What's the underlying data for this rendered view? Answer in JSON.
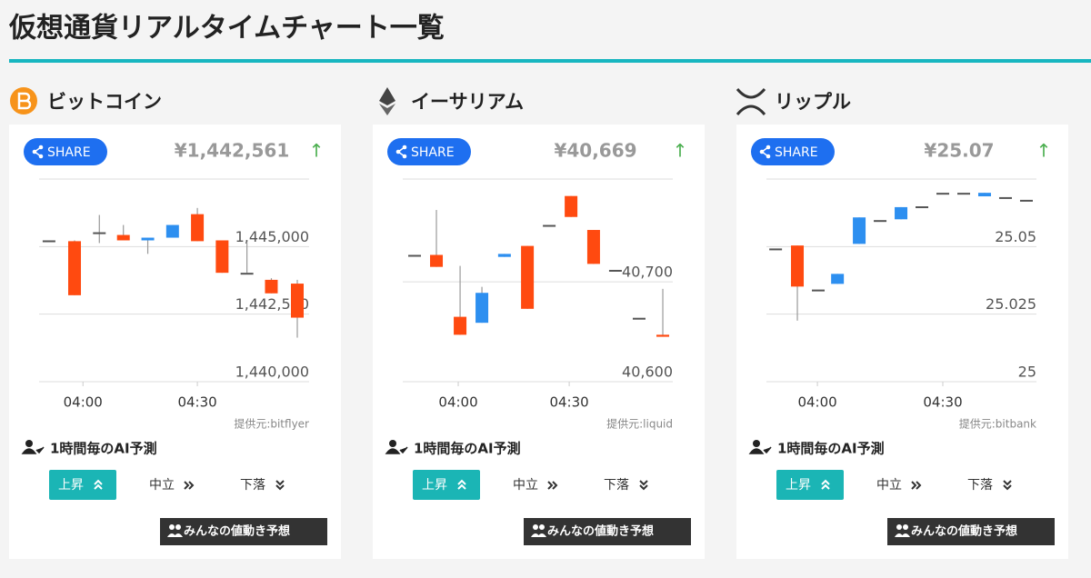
{
  "header": {
    "title": "仮想通貨リアルタイムチャート一覧"
  },
  "cards": [
    {
      "name": "ビットコイン",
      "price": "¥1,442,561",
      "arrow": "↑",
      "share": "SHARE",
      "source": "提供元:bitflyer",
      "ai_label": "1時間毎のAI予測",
      "buttons": [
        "上昇",
        "中立",
        "下落"
      ],
      "vote": "みんなの値動き予想"
    },
    {
      "name": "イーサリアム",
      "price": "¥40,669",
      "arrow": "↑",
      "share": "SHARE",
      "source": "提供元:liquid",
      "ai_label": "1時間毎のAI予測",
      "buttons": [
        "上昇",
        "中立",
        "下落"
      ],
      "vote": "みんなの値動き予想"
    },
    {
      "name": "リップル",
      "price": "¥25.07",
      "arrow": "↑",
      "share": "SHARE",
      "source": "提供元:bitbank",
      "ai_label": "1時間毎のAI予測",
      "buttons": [
        "上昇",
        "中立",
        "下落"
      ],
      "vote": "みんなの値動き予想"
    }
  ],
  "chart_data": [
    {
      "type": "candlestick",
      "x": [
        231.1,
        237.8,
        244.3,
        250.6,
        257,
        263.5,
        270,
        276.5,
        283,
        289.4,
        296.2
      ],
      "open": [
        1445230,
        1445200,
        1445530,
        1445430,
        1445230,
        1445330,
        1446200,
        1445230,
        1444030,
        1443770,
        1443630
      ],
      "high": [
        1445230,
        1445230,
        1446170,
        1445800,
        1445330,
        1445800,
        1446430,
        1445230,
        1445170,
        1443830,
        1443770
      ],
      "low": [
        1445230,
        1443200,
        1445130,
        1445230,
        1444730,
        1445330,
        1445200,
        1444030,
        1444030,
        1443270,
        1441630
      ],
      "close": [
        1445230,
        1443200,
        1445530,
        1445230,
        1445330,
        1445800,
        1445200,
        1444030,
        1444030,
        1443270,
        1442370
      ],
      "xlim": [
        228.5,
        299.3
      ],
      "xticks": [
        {
          "value": 240,
          "label": "04:00"
        },
        {
          "value": 270,
          "label": "04:30"
        }
      ],
      "ylim": [
        1440000,
        1447500
      ],
      "yticks": [
        {
          "value": 1440000,
          "label": "1,440,000"
        },
        {
          "value": 1442500,
          "label": "1,442,500"
        },
        {
          "value": 1445000,
          "label": "1,445,000"
        }
      ],
      "grid": true,
      "up_color": "#2d8ff0",
      "down_color": "#ff4a10",
      "flat_color": "#555555",
      "wick_color": "#999999"
    },
    {
      "type": "candlestick",
      "x": [
        228.2,
        234.1,
        240.5,
        246.4,
        252.5,
        258.7,
        264.6,
        270.5,
        276.6,
        282.5,
        288.9,
        295.3
      ],
      "open": [
        40727,
        40727,
        40665,
        40659,
        40725,
        40736,
        40757,
        40786,
        40752,
        40712,
        40664,
        40647
      ],
      "high": [
        40727,
        40772,
        40716,
        40695,
        40728,
        40736,
        40757,
        40786,
        40752,
        40712,
        40664,
        40693
      ],
      "low": [
        40727,
        40715,
        40647,
        40659,
        40725,
        40673,
        40757,
        40765,
        40718,
        40712,
        40664,
        40645
      ],
      "close": [
        40727,
        40715,
        40647,
        40689,
        40728,
        40673,
        40757,
        40765,
        40718,
        40712,
        40664,
        40645
      ],
      "xlim": [
        225,
        298
      ],
      "xticks": [
        {
          "value": 240,
          "label": "04:00"
        },
        {
          "value": 270,
          "label": "04:30"
        }
      ],
      "ylim": [
        40600,
        40803
      ],
      "yticks": [
        {
          "value": 40600,
          "label": "40,600"
        },
        {
          "value": 40700,
          "label": "40,700"
        }
      ],
      "grid": true,
      "up_color": "#2d8ff0",
      "down_color": "#ff4a10",
      "flat_color": "#555555",
      "wick_color": "#999999"
    },
    {
      "type": "candlestick",
      "x": [
        230,
        235.2,
        240.2,
        244.8,
        250,
        255,
        260,
        265,
        270,
        275,
        280,
        285,
        290
      ],
      "open": [
        25.0493,
        25.0504,
        25.0341,
        25.0362,
        25.051,
        25.0598,
        25.0601,
        25.0649,
        25.0699,
        25.0699,
        25.0686,
        25.0683,
        25.0673
      ],
      "high": [
        25.0493,
        25.0504,
        25.0341,
        25.0399,
        25.0608,
        25.0598,
        25.0646,
        25.0649,
        25.0699,
        25.0699,
        25.0699,
        25.0683,
        25.0673
      ],
      "low": [
        25.0493,
        25.0226,
        25.0341,
        25.0362,
        25.051,
        25.0598,
        25.0601,
        25.0649,
        25.0699,
        25.0699,
        25.0686,
        25.0683,
        25.0673
      ],
      "close": [
        25.0493,
        25.0352,
        25.0341,
        25.0399,
        25.0608,
        25.0598,
        25.0646,
        25.0649,
        25.0699,
        25.0699,
        25.0699,
        25.0683,
        25.0673
      ],
      "xlim": [
        227.8,
        292.4
      ],
      "xticks": [
        {
          "value": 240,
          "label": "04:00"
        },
        {
          "value": 270,
          "label": "04:30"
        }
      ],
      "ylim": [
        25,
        25.075
      ],
      "yticks": [
        25,
        25.025,
        25.05
      ],
      "grid": true,
      "up_color": "#2d8ff0",
      "down_color": "#ff4a10",
      "flat_color": "#555555",
      "wick_color": "#999999"
    }
  ]
}
